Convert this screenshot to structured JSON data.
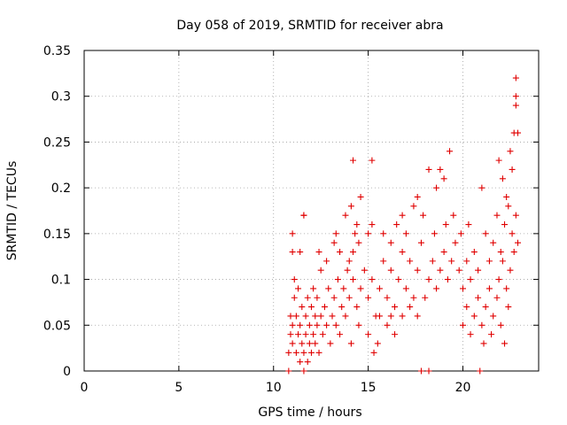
{
  "chart_data": {
    "type": "scatter",
    "title": "Day 058 of 2019, SRMTID for receiver abra",
    "xlabel": "GPS time / hours",
    "ylabel": "SRMTID / TECUs",
    "xlim": [
      0,
      24
    ],
    "ylim": [
      0,
      0.35
    ],
    "x_ticks": [
      0,
      5,
      10,
      15,
      20
    ],
    "x_tick_labels": [
      "0",
      "5",
      "10",
      "15",
      "20"
    ],
    "y_ticks": [
      0,
      0.05,
      0.1,
      0.15,
      0.2,
      0.25,
      0.3,
      0.35
    ],
    "y_tick_labels": [
      "0",
      "0.05",
      "0.1",
      "0.15",
      "0.2",
      "0.25",
      "0.3",
      "0.35"
    ],
    "grid": true,
    "marker": "plus",
    "color": "#e00000",
    "series": [
      {
        "name": "SRMTID",
        "points": [
          [
            10.8,
            0.0
          ],
          [
            17.8,
            0.0
          ],
          [
            18.2,
            0.0
          ],
          [
            20.9,
            0.0
          ],
          [
            10.8,
            0.02
          ],
          [
            10.9,
            0.04
          ],
          [
            10.9,
            0.06
          ],
          [
            11.0,
            0.03
          ],
          [
            11.0,
            0.05
          ],
          [
            11.1,
            0.08
          ],
          [
            11.1,
            0.1
          ],
          [
            11.2,
            0.02
          ],
          [
            11.2,
            0.06
          ],
          [
            11.3,
            0.04
          ],
          [
            11.3,
            0.09
          ],
          [
            11.4,
            0.01
          ],
          [
            11.4,
            0.05
          ],
          [
            11.5,
            0.03
          ],
          [
            11.5,
            0.07
          ],
          [
            11.6,
            0.0
          ],
          [
            11.6,
            0.02
          ],
          [
            11.7,
            0.04
          ],
          [
            11.7,
            0.06
          ],
          [
            11.8,
            0.01
          ],
          [
            11.8,
            0.08
          ],
          [
            11.9,
            0.03
          ],
          [
            11.9,
            0.05
          ],
          [
            12.0,
            0.02
          ],
          [
            12.0,
            0.07
          ],
          [
            12.1,
            0.04
          ],
          [
            12.1,
            0.09
          ],
          [
            12.2,
            0.03
          ],
          [
            12.2,
            0.06
          ],
          [
            12.3,
            0.05
          ],
          [
            12.3,
            0.08
          ],
          [
            12.4,
            0.02
          ],
          [
            12.5,
            0.06
          ],
          [
            12.6,
            0.04
          ],
          [
            12.7,
            0.07
          ],
          [
            12.8,
            0.05
          ],
          [
            12.9,
            0.09
          ],
          [
            13.0,
            0.03
          ],
          [
            13.1,
            0.06
          ],
          [
            13.2,
            0.08
          ],
          [
            13.3,
            0.05
          ],
          [
            13.4,
            0.1
          ],
          [
            13.5,
            0.04
          ],
          [
            13.6,
            0.07
          ],
          [
            13.7,
            0.09
          ],
          [
            13.8,
            0.06
          ],
          [
            13.9,
            0.11
          ],
          [
            11.0,
            0.13
          ],
          [
            11.6,
            0.17
          ],
          [
            11.6,
            0.17
          ],
          [
            11.0,
            0.15
          ],
          [
            11.4,
            0.13
          ],
          [
            12.4,
            0.13
          ],
          [
            12.5,
            0.11
          ],
          [
            12.8,
            0.12
          ],
          [
            13.2,
            0.14
          ],
          [
            13.3,
            0.15
          ],
          [
            13.5,
            0.13
          ],
          [
            13.8,
            0.17
          ],
          [
            14.0,
            0.12
          ],
          [
            14.2,
            0.13
          ],
          [
            14.3,
            0.15
          ],
          [
            14.1,
            0.18
          ],
          [
            14.4,
            0.16
          ],
          [
            14.5,
            0.14
          ],
          [
            14.6,
            0.19
          ],
          [
            14.2,
            0.23
          ],
          [
            15.2,
            0.23
          ],
          [
            14.0,
            0.08
          ],
          [
            14.2,
            0.1
          ],
          [
            14.4,
            0.07
          ],
          [
            14.6,
            0.09
          ],
          [
            14.8,
            0.11
          ],
          [
            15.0,
            0.08
          ],
          [
            15.2,
            0.1
          ],
          [
            15.4,
            0.06
          ],
          [
            15.6,
            0.09
          ],
          [
            15.8,
            0.12
          ],
          [
            16.0,
            0.08
          ],
          [
            16.2,
            0.11
          ],
          [
            16.4,
            0.07
          ],
          [
            16.6,
            0.1
          ],
          [
            16.8,
            0.13
          ],
          [
            17.0,
            0.09
          ],
          [
            17.2,
            0.12
          ],
          [
            17.4,
            0.08
          ],
          [
            17.6,
            0.11
          ],
          [
            17.8,
            0.14
          ],
          [
            14.1,
            0.03
          ],
          [
            14.5,
            0.05
          ],
          [
            15.0,
            0.04
          ],
          [
            15.3,
            0.02
          ],
          [
            15.6,
            0.06
          ],
          [
            16.0,
            0.05
          ],
          [
            16.4,
            0.04
          ],
          [
            16.8,
            0.06
          ],
          [
            17.2,
            0.07
          ],
          [
            17.6,
            0.06
          ],
          [
            15.5,
            0.03
          ],
          [
            16.2,
            0.06
          ],
          [
            15.0,
            0.15
          ],
          [
            15.2,
            0.16
          ],
          [
            15.8,
            0.15
          ],
          [
            16.2,
            0.14
          ],
          [
            16.5,
            0.16
          ],
          [
            16.8,
            0.17
          ],
          [
            17.0,
            0.15
          ],
          [
            17.4,
            0.18
          ],
          [
            17.6,
            0.19
          ],
          [
            17.9,
            0.17
          ],
          [
            18.2,
            0.22
          ],
          [
            18.6,
            0.2
          ],
          [
            18.8,
            0.22
          ],
          [
            19.0,
            0.21
          ],
          [
            19.3,
            0.24
          ],
          [
            18.0,
            0.08
          ],
          [
            18.2,
            0.1
          ],
          [
            18.4,
            0.12
          ],
          [
            18.6,
            0.09
          ],
          [
            18.8,
            0.11
          ],
          [
            19.0,
            0.13
          ],
          [
            19.2,
            0.1
          ],
          [
            19.4,
            0.12
          ],
          [
            19.6,
            0.14
          ],
          [
            19.8,
            0.11
          ],
          [
            20.0,
            0.09
          ],
          [
            20.2,
            0.12
          ],
          [
            20.4,
            0.1
          ],
          [
            20.6,
            0.13
          ],
          [
            20.8,
            0.11
          ],
          [
            18.5,
            0.15
          ],
          [
            19.1,
            0.16
          ],
          [
            19.5,
            0.17
          ],
          [
            19.9,
            0.15
          ],
          [
            20.3,
            0.16
          ],
          [
            20.0,
            0.05
          ],
          [
            20.2,
            0.07
          ],
          [
            20.4,
            0.04
          ],
          [
            20.6,
            0.06
          ],
          [
            20.8,
            0.08
          ],
          [
            21.0,
            0.05
          ],
          [
            21.2,
            0.07
          ],
          [
            21.4,
            0.09
          ],
          [
            21.6,
            0.06
          ],
          [
            21.8,
            0.08
          ],
          [
            22.0,
            0.05
          ],
          [
            22.2,
            0.03
          ],
          [
            21.1,
            0.03
          ],
          [
            21.5,
            0.04
          ],
          [
            21.0,
            0.2
          ],
          [
            21.2,
            0.15
          ],
          [
            21.4,
            0.12
          ],
          [
            21.6,
            0.14
          ],
          [
            21.8,
            0.17
          ],
          [
            22.0,
            0.13
          ],
          [
            22.2,
            0.16
          ],
          [
            22.4,
            0.18
          ],
          [
            22.6,
            0.15
          ],
          [
            22.8,
            0.17
          ],
          [
            21.9,
            0.23
          ],
          [
            22.1,
            0.21
          ],
          [
            22.3,
            0.19
          ],
          [
            22.5,
            0.24
          ],
          [
            22.7,
            0.26
          ],
          [
            22.9,
            0.26
          ],
          [
            22.6,
            0.22
          ],
          [
            22.8,
            0.29
          ],
          [
            22.8,
            0.3
          ],
          [
            22.8,
            0.32
          ],
          [
            21.9,
            0.1
          ],
          [
            22.1,
            0.12
          ],
          [
            22.3,
            0.09
          ],
          [
            22.5,
            0.11
          ],
          [
            22.7,
            0.13
          ],
          [
            22.9,
            0.14
          ],
          [
            22.4,
            0.07
          ]
        ]
      }
    ]
  }
}
